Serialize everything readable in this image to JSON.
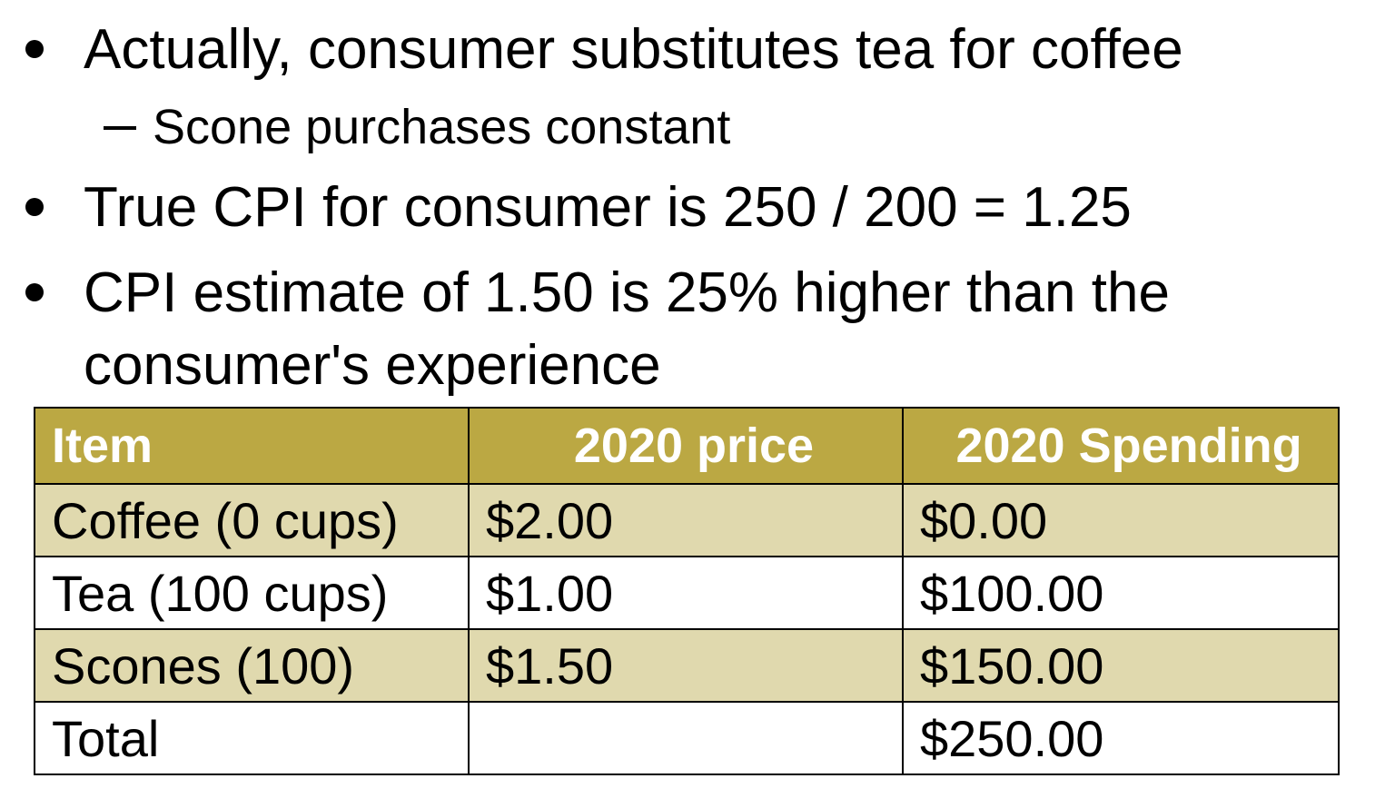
{
  "bullets": [
    {
      "text": "Actually, consumer substitutes tea for coffee"
    },
    {
      "text": "True CPI for consumer is 250 / 200 = 1.25"
    },
    {
      "text_line1": "CPI estimate of 1.50 is 25% higher than the",
      "text_line2": "consumer's experience"
    }
  ],
  "sub_bullets": [
    {
      "text": "Scone purchases constant"
    }
  ],
  "table": {
    "headers": [
      "Item",
      "2020 price",
      "2020 Spending"
    ],
    "rows": [
      {
        "item": "Coffee (0 cups)",
        "price": "$2.00",
        "spending": "$0.00"
      },
      {
        "item": "Tea (100 cups)",
        "price": "$1.00",
        "spending": "$100.00"
      },
      {
        "item": "Scones (100)",
        "price": "$1.50",
        "spending": "$150.00"
      },
      {
        "item": "Total",
        "price": "",
        "spending": "$250.00"
      }
    ]
  },
  "colors": {
    "header_bg": "#bba843",
    "shaded_row_bg": "#e0d9ae",
    "header_text": "#ffffff"
  }
}
